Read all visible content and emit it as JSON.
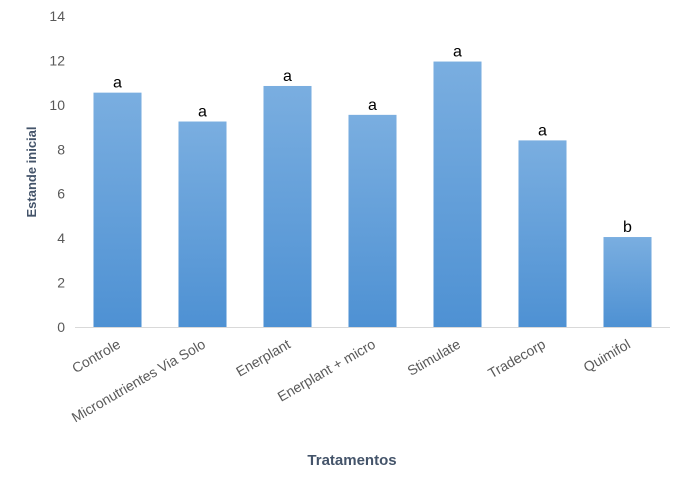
{
  "chart_data": {
    "type": "bar",
    "title": "",
    "xlabel": "Tratamentos",
    "ylabel": "Estande inicial",
    "ylim": [
      0,
      14
    ],
    "yticks": [
      0,
      2,
      4,
      6,
      8,
      10,
      12,
      14
    ],
    "grid": false,
    "legend": "none",
    "categories": [
      "Controle",
      "Micronutrientes Via Solo",
      "Enerplant",
      "Enerplant + micro",
      "Stimulate",
      "Tradecorp",
      "Quimifol"
    ],
    "values": [
      10.55,
      9.25,
      10.85,
      9.55,
      11.95,
      8.4,
      4.05
    ],
    "data_labels": [
      "a",
      "a",
      "a",
      "a",
      "a",
      "a",
      "b"
    ],
    "colors": {
      "bar_top": "#7aaee0",
      "bar_bottom": "#4e91d3",
      "axis_line": "#d9d9d9",
      "tick_text": "#595959",
      "axis_title": "#44546a"
    }
  }
}
